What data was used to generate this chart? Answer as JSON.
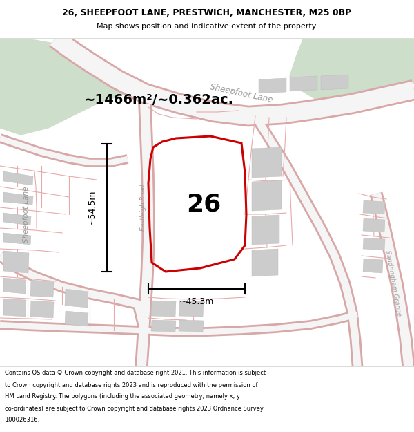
{
  "title_line1": "26, SHEEPFOOT LANE, PRESTWICH, MANCHESTER, M25 0BP",
  "title_line2": "Map shows position and indicative extent of the property.",
  "area_text": "~1466m²/~0.362ac.",
  "label_26": "26",
  "dim_height": "~54.5m",
  "dim_width": "~45.3m",
  "street_sheepfoot_top": "Sheepfoot Lane",
  "street_eastleigh": "Eastleigh Road",
  "street_sandringham": "Sandringham Grange",
  "street_sheepfoot_left": "Sheepfoot Lane",
  "footer_lines": [
    "Contains OS data © Crown copyright and database right 2021. This information is subject",
    "to Crown copyright and database rights 2023 and is reproduced with the permission of",
    "HM Land Registry. The polygons (including the associated geometry, namely x, y",
    "co-ordinates) are subject to Crown copyright and database rights 2023 Ordnance Survey",
    "100026316."
  ],
  "bg_color": "#ffffff",
  "green_color": "#cddeca",
  "road_fill": "#f0f0f0",
  "road_edge": "#e0b8b8",
  "thin_line_color": "#e8aaaa",
  "building_color": "#cccccc",
  "plot_color": "#cc0000",
  "dim_color": "#000000",
  "title_color": "#000000",
  "footer_color": "#000000",
  "label_color": "#000000",
  "area_color": "#000000",
  "street_color": "#999999"
}
